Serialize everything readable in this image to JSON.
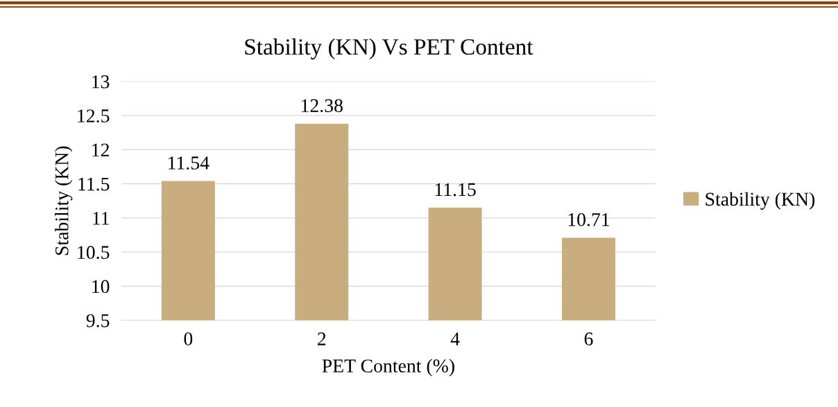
{
  "chart_data": {
    "type": "bar",
    "title": "Stability (KN) Vs PET Content",
    "xlabel": "PET Content (%)",
    "ylabel": "Stability (KN)",
    "categories": [
      "0",
      "2",
      "4",
      "6"
    ],
    "series": [
      {
        "name": "Stability (KN)",
        "color": "#c9ad7f",
        "values": [
          11.54,
          12.38,
          11.15,
          10.71
        ]
      }
    ],
    "ylim": [
      9.5,
      13
    ],
    "yticks": [
      9.5,
      10,
      10.5,
      11,
      11.5,
      12,
      12.5,
      13
    ],
    "grid": "y",
    "legend": "right",
    "data_labels": true
  }
}
